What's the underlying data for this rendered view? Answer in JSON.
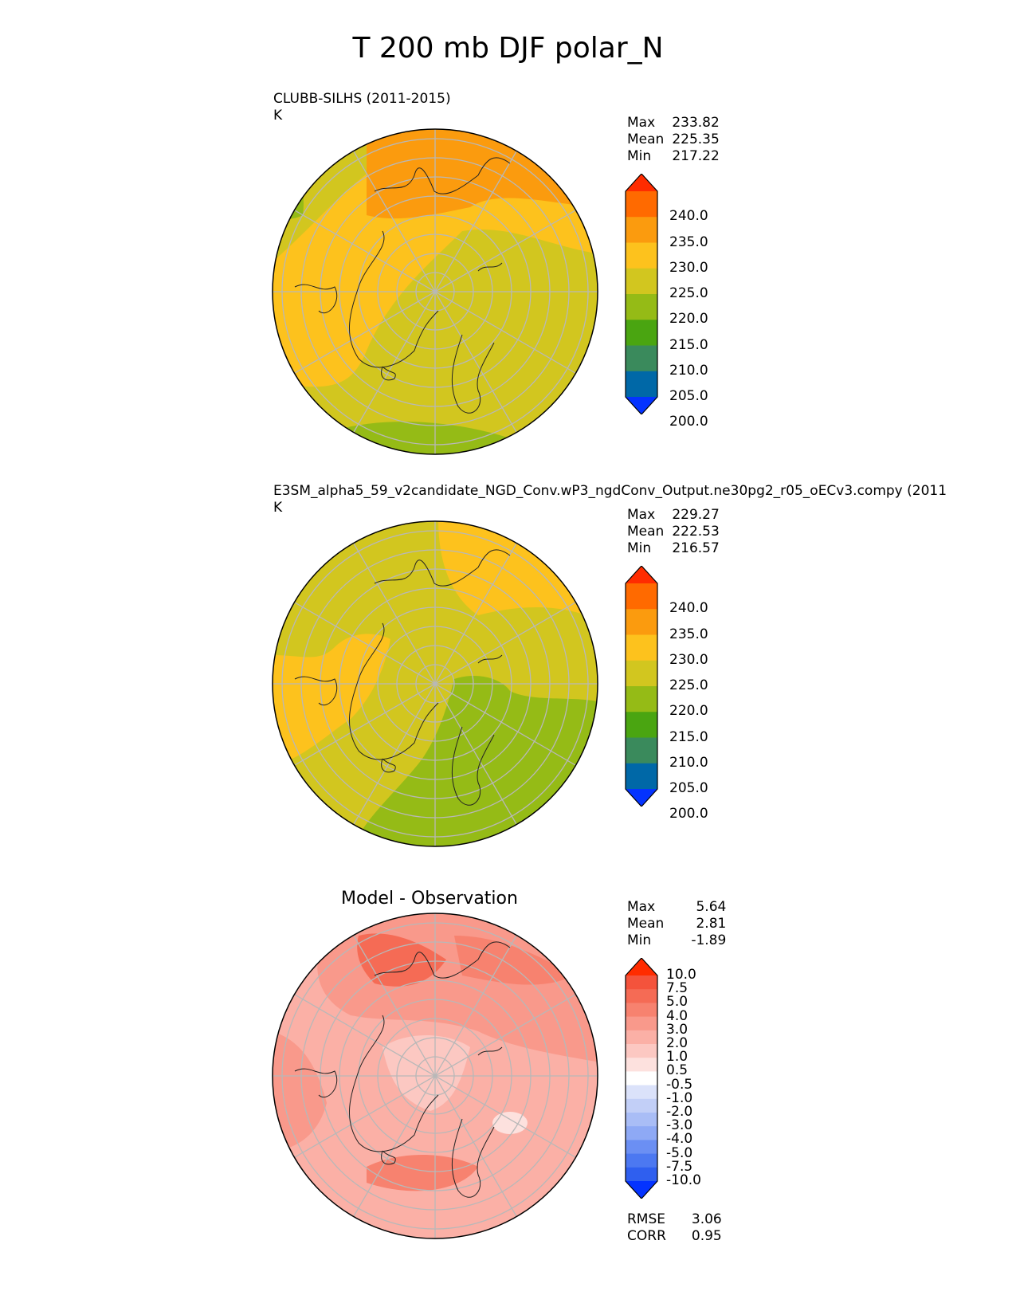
{
  "title": "T 200 mb DJF polar_N",
  "colors": {
    "abs_levels": [
      "#0433ff",
      "#0068a7",
      "#3a8a5c",
      "#4aa511",
      "#95bb16",
      "#d2c61f",
      "#fdc21d",
      "#fb9b0e",
      "#ff6a00",
      "#ff2c00"
    ],
    "diff_levels": [
      "#0433ff",
      "#2f5fef",
      "#4c78f1",
      "#6b8ff3",
      "#8ea9f5",
      "#a9bdf6",
      "#c2cff7",
      "#dbe2fa",
      "#ffffff",
      "#fde1de",
      "#fcc8c2",
      "#fbb0a6",
      "#f9998b",
      "#f7826f",
      "#f56b55",
      "#f4533c",
      "#ff2c00"
    ],
    "graticule": "#b8b8b8"
  },
  "panels": [
    {
      "label": "CLUBB-SILHS (2011-2015)",
      "units": "K",
      "stats": {
        "max_label": "Max",
        "max": "233.82",
        "mean_label": "Mean",
        "mean": "225.35",
        "min_label": "Min",
        "min": "217.22"
      },
      "colorbar": {
        "ticks": [
          "240.0",
          "235.0",
          "230.0",
          "225.0",
          "220.0",
          "215.0",
          "210.0",
          "205.0",
          "200.0"
        ]
      }
    },
    {
      "label": "E3SM_alpha5_59_v2candidate_NGD_Conv.wP3_ngdConv_Output.ne30pg2_r05_oECv3.compy (2011",
      "units": "K",
      "stats": {
        "max_label": "Max",
        "max": "229.27",
        "mean_label": "Mean",
        "mean": "222.53",
        "min_label": "Min",
        "min": "216.57"
      },
      "colorbar": {
        "ticks": [
          "240.0",
          "235.0",
          "230.0",
          "225.0",
          "220.0",
          "215.0",
          "210.0",
          "205.0",
          "200.0"
        ]
      }
    },
    {
      "label": "Model - Observation",
      "stats": {
        "max_label": "Max",
        "max": "5.64",
        "mean_label": "Mean",
        "mean": "2.81",
        "min_label": "Min",
        "min": "-1.89"
      },
      "colorbar": {
        "ticks": [
          "10.0",
          "7.5",
          "5.0",
          "4.0",
          "3.0",
          "2.0",
          "1.0",
          "0.5",
          "-0.5",
          "-1.0",
          "-2.0",
          "-3.0",
          "-4.0",
          "-5.0",
          "-7.5",
          "-10.0"
        ]
      },
      "metrics": {
        "rmse_label": "RMSE",
        "rmse": "3.06",
        "corr_label": "CORR",
        "corr": "0.95"
      }
    }
  ]
}
